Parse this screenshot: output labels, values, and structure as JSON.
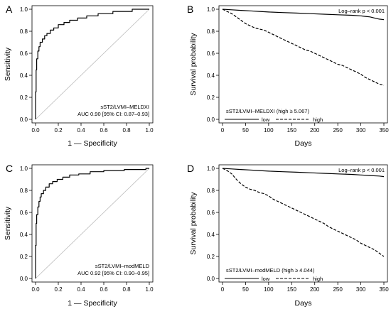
{
  "chart_data": [
    {
      "panel_letter": "A",
      "type": "line",
      "subtype": "roc",
      "xlabel": "1 — Specificity",
      "ylabel": "Sensitivity",
      "xlim": [
        0,
        1
      ],
      "ylim": [
        0,
        1
      ],
      "xticks": [
        "0.0",
        "0.2",
        "0.4",
        "0.6",
        "0.8",
        "1.0"
      ],
      "yticks": [
        "0.0",
        "0.2",
        "0.4",
        "0.6",
        "0.8",
        "1.0"
      ],
      "grid": false,
      "reference_line": true,
      "annotation_lines": [
        "sST2/LVMI–MELDXI",
        "AUC 0.90 [95% CI: 0.87–0.93]"
      ],
      "series": [
        {
          "x": [
            0,
            0,
            0.005,
            0.005,
            0.01,
            0.01,
            0.02,
            0.02,
            0.03,
            0.03,
            0.04,
            0.04,
            0.06,
            0.06,
            0.08,
            0.08,
            0.1,
            0.1,
            0.13,
            0.13,
            0.16,
            0.16,
            0.2,
            0.2,
            0.25,
            0.25,
            0.3,
            0.3,
            0.37,
            0.37,
            0.45,
            0.45,
            0.55,
            0.55,
            0.68,
            0.68,
            0.85,
            0.85,
            1.0
          ],
          "y": [
            0,
            0.25,
            0.25,
            0.45,
            0.45,
            0.55,
            0.55,
            0.62,
            0.62,
            0.66,
            0.66,
            0.7,
            0.7,
            0.73,
            0.73,
            0.76,
            0.76,
            0.78,
            0.78,
            0.81,
            0.81,
            0.83,
            0.83,
            0.86,
            0.86,
            0.88,
            0.88,
            0.9,
            0.9,
            0.92,
            0.92,
            0.94,
            0.94,
            0.96,
            0.96,
            0.98,
            0.98,
            1.0,
            1.0
          ]
        }
      ]
    },
    {
      "panel_letter": "B",
      "type": "line",
      "subtype": "kaplan-meier",
      "xlabel": "Days",
      "ylabel": "Survival probability",
      "xlim": [
        0,
        350
      ],
      "ylim": [
        0,
        1
      ],
      "xticks": [
        "0",
        "50",
        "100",
        "150",
        "200",
        "250",
        "300",
        "350"
      ],
      "yticks": [
        "0.0",
        "0.2",
        "0.4",
        "0.6",
        "0.8",
        "1.0"
      ],
      "grid": false,
      "pvalue_text": "Log–rank p < 0.001",
      "legend_title": "sST2/LVMI–MELDXI (high ≥ 5.067)",
      "legend_placement": "bottom-left",
      "series": [
        {
          "name": "low",
          "style": "solid",
          "x": [
            0,
            20,
            40,
            60,
            80,
            100,
            130,
            160,
            190,
            220,
            250,
            280,
            300,
            310,
            320,
            330,
            340,
            350
          ],
          "y": [
            1.0,
            0.995,
            0.99,
            0.985,
            0.98,
            0.975,
            0.97,
            0.965,
            0.96,
            0.955,
            0.95,
            0.945,
            0.94,
            0.935,
            0.93,
            0.92,
            0.91,
            0.905
          ]
        },
        {
          "name": "high",
          "style": "dashed",
          "x": [
            0,
            10,
            20,
            30,
            40,
            50,
            60,
            70,
            80,
            90,
            100,
            110,
            120,
            130,
            140,
            150,
            160,
            170,
            180,
            190,
            200,
            210,
            220,
            230,
            240,
            250,
            260,
            270,
            280,
            290,
            300,
            310,
            320,
            330,
            340,
            350
          ],
          "y": [
            1.0,
            0.98,
            0.96,
            0.93,
            0.9,
            0.87,
            0.85,
            0.83,
            0.82,
            0.81,
            0.79,
            0.77,
            0.75,
            0.73,
            0.71,
            0.69,
            0.67,
            0.65,
            0.63,
            0.62,
            0.6,
            0.58,
            0.56,
            0.54,
            0.52,
            0.5,
            0.49,
            0.47,
            0.45,
            0.43,
            0.41,
            0.38,
            0.36,
            0.34,
            0.32,
            0.31
          ]
        }
      ]
    },
    {
      "panel_letter": "C",
      "type": "line",
      "subtype": "roc",
      "xlabel": "1 — Specificity",
      "ylabel": "Sensitivity",
      "xlim": [
        0,
        1
      ],
      "ylim": [
        0,
        1
      ],
      "xticks": [
        "0.0",
        "0.2",
        "0.4",
        "0.6",
        "0.8",
        "1.0"
      ],
      "yticks": [
        "0.0",
        "0.2",
        "0.4",
        "0.6",
        "0.8",
        "1.0"
      ],
      "grid": false,
      "reference_line": true,
      "annotation_lines": [
        "sST2/LVMI–modMELD",
        "AUC 0.92 [95% CI: 0.90–0.95]"
      ],
      "series": [
        {
          "x": [
            0,
            0,
            0.005,
            0.005,
            0.01,
            0.01,
            0.02,
            0.02,
            0.03,
            0.03,
            0.04,
            0.04,
            0.05,
            0.05,
            0.07,
            0.07,
            0.09,
            0.09,
            0.12,
            0.12,
            0.15,
            0.15,
            0.19,
            0.19,
            0.24,
            0.24,
            0.3,
            0.3,
            0.38,
            0.38,
            0.48,
            0.48,
            0.6,
            0.6,
            0.78,
            0.78,
            0.97,
            0.97,
            1.0
          ],
          "y": [
            0,
            0.3,
            0.3,
            0.5,
            0.5,
            0.58,
            0.58,
            0.65,
            0.65,
            0.7,
            0.7,
            0.74,
            0.74,
            0.77,
            0.77,
            0.8,
            0.8,
            0.83,
            0.83,
            0.86,
            0.86,
            0.88,
            0.88,
            0.9,
            0.9,
            0.92,
            0.92,
            0.94,
            0.94,
            0.95,
            0.95,
            0.97,
            0.97,
            0.98,
            0.98,
            0.99,
            0.99,
            1.0,
            1.0
          ]
        }
      ]
    },
    {
      "panel_letter": "D",
      "type": "line",
      "subtype": "kaplan-meier",
      "xlabel": "Days",
      "ylabel": "Survival probability",
      "xlim": [
        0,
        350
      ],
      "ylim": [
        0,
        1
      ],
      "xticks": [
        "0",
        "50",
        "100",
        "150",
        "200",
        "250",
        "300",
        "350"
      ],
      "yticks": [
        "0.0",
        "0.2",
        "0.4",
        "0.6",
        "0.8",
        "1.0"
      ],
      "grid": false,
      "pvalue_text": "Log–rank p < 0.001",
      "legend_title": "sST2/LVMI–modMELD (high ≥ 4.044)",
      "legend_placement": "bottom-left",
      "series": [
        {
          "name": "low",
          "style": "solid",
          "x": [
            0,
            20,
            40,
            60,
            80,
            100,
            130,
            160,
            190,
            220,
            250,
            280,
            300,
            320,
            340,
            350
          ],
          "y": [
            1.0,
            0.995,
            0.99,
            0.985,
            0.98,
            0.975,
            0.97,
            0.965,
            0.96,
            0.955,
            0.95,
            0.945,
            0.94,
            0.935,
            0.93,
            0.925
          ]
        },
        {
          "name": "high",
          "style": "dashed",
          "x": [
            0,
            10,
            20,
            30,
            40,
            50,
            60,
            70,
            80,
            90,
            100,
            110,
            120,
            130,
            140,
            150,
            160,
            170,
            180,
            190,
            200,
            210,
            220,
            230,
            240,
            250,
            260,
            270,
            280,
            290,
            300,
            310,
            320,
            330,
            340,
            350
          ],
          "y": [
            1.0,
            0.98,
            0.95,
            0.9,
            0.86,
            0.83,
            0.81,
            0.8,
            0.78,
            0.77,
            0.75,
            0.72,
            0.7,
            0.68,
            0.66,
            0.64,
            0.62,
            0.6,
            0.58,
            0.56,
            0.54,
            0.52,
            0.5,
            0.47,
            0.45,
            0.43,
            0.41,
            0.39,
            0.37,
            0.35,
            0.32,
            0.3,
            0.28,
            0.26,
            0.23,
            0.2
          ]
        }
      ]
    }
  ]
}
